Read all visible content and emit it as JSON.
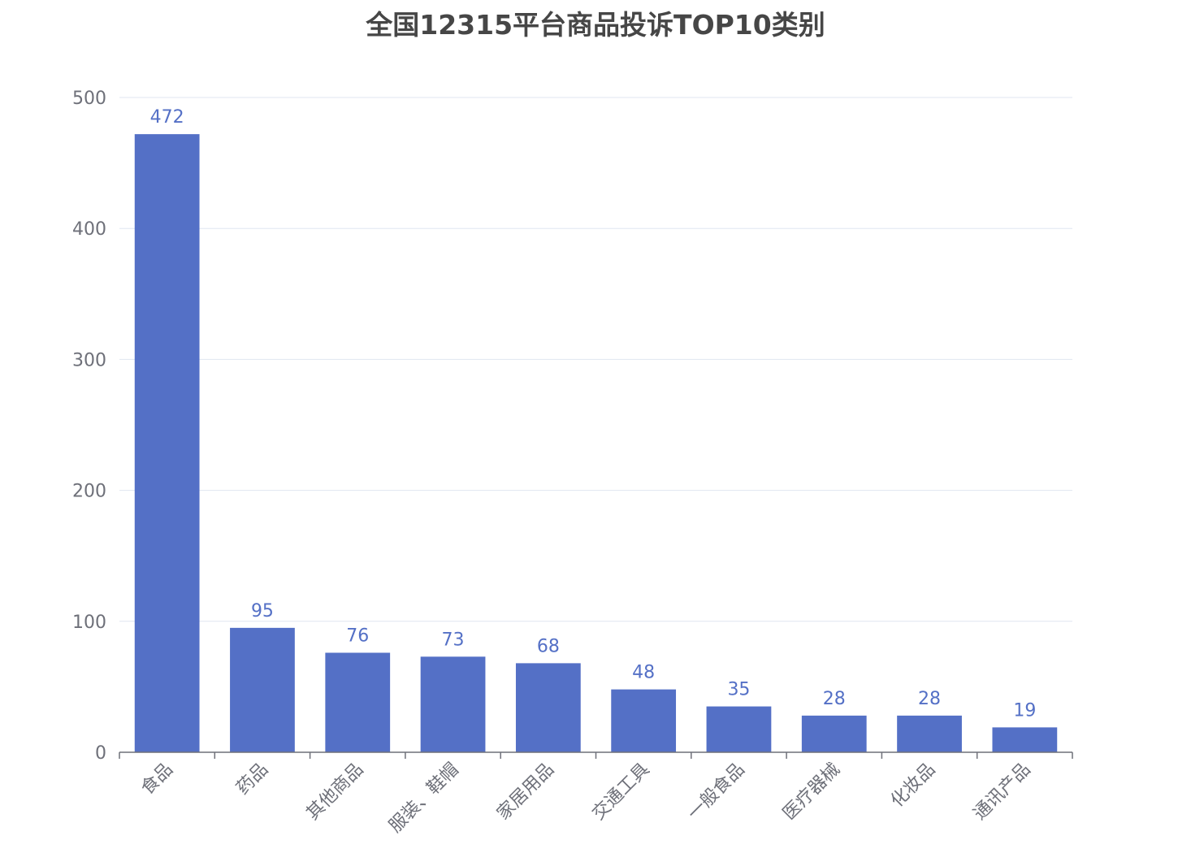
{
  "title": "全国12315平台商品投诉TOP10类别",
  "colors": {
    "bar": "#5470c6",
    "label": "#5470c6",
    "grid": "#e0e6f1",
    "axis": "#6e7079",
    "title": "#464646"
  },
  "chart_data": {
    "type": "bar",
    "title": "全国12315平台商品投诉TOP10类别",
    "categories": [
      "食品",
      "药品",
      "其他商品",
      "服装、鞋帽",
      "家居用品",
      "交通工具",
      "一般食品",
      "医疗器械",
      "化妆品",
      "通讯产品"
    ],
    "values": [
      472,
      95,
      76,
      73,
      68,
      48,
      35,
      28,
      28,
      19
    ],
    "yticks": [
      "0",
      "100",
      "200",
      "300",
      "400",
      "500"
    ],
    "ylim": [
      0,
      500
    ],
    "grid": true,
    "xlabel": "",
    "ylabel": ""
  }
}
